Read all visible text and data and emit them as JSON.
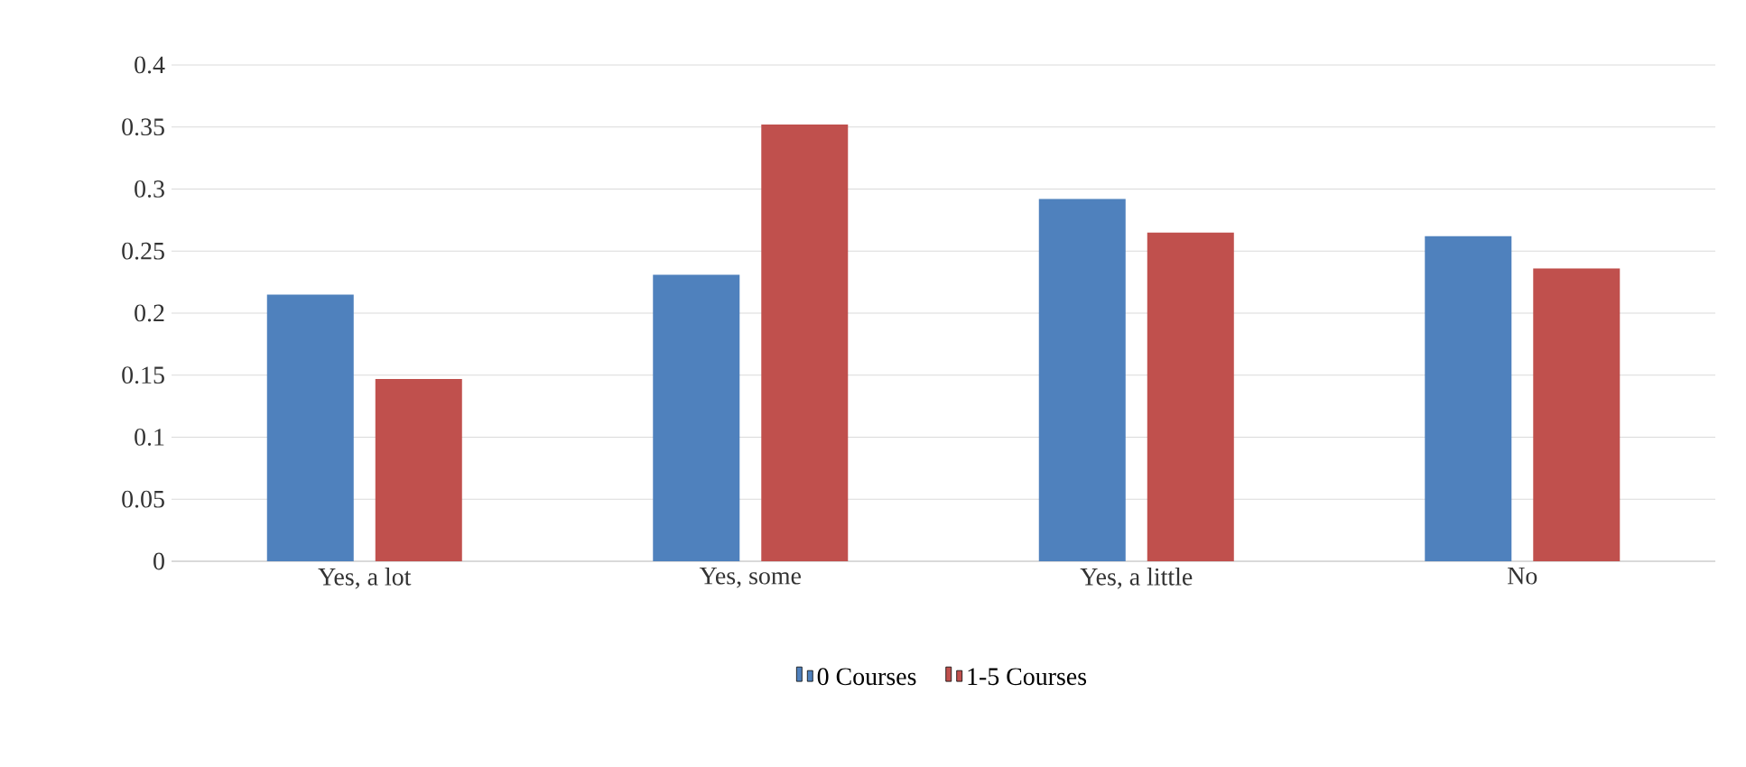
{
  "chart_data": {
    "type": "bar",
    "categories": [
      "Yes, a lot",
      "Yes, some",
      "Yes, a little",
      "No"
    ],
    "series": [
      {
        "name": "0 Courses",
        "color": "#4f81bd",
        "values": [
          0.215,
          0.231,
          0.292,
          0.262
        ]
      },
      {
        "name": "1-5 Courses",
        "color": "#c0504d",
        "values": [
          0.147,
          0.352,
          0.265,
          0.236
        ]
      }
    ],
    "ylim": [
      0,
      0.4
    ],
    "yticks": [
      0,
      0.05,
      0.1,
      0.15,
      0.2,
      0.25,
      0.3,
      0.35,
      0.4
    ],
    "grid": "y",
    "legend": "bottom"
  }
}
